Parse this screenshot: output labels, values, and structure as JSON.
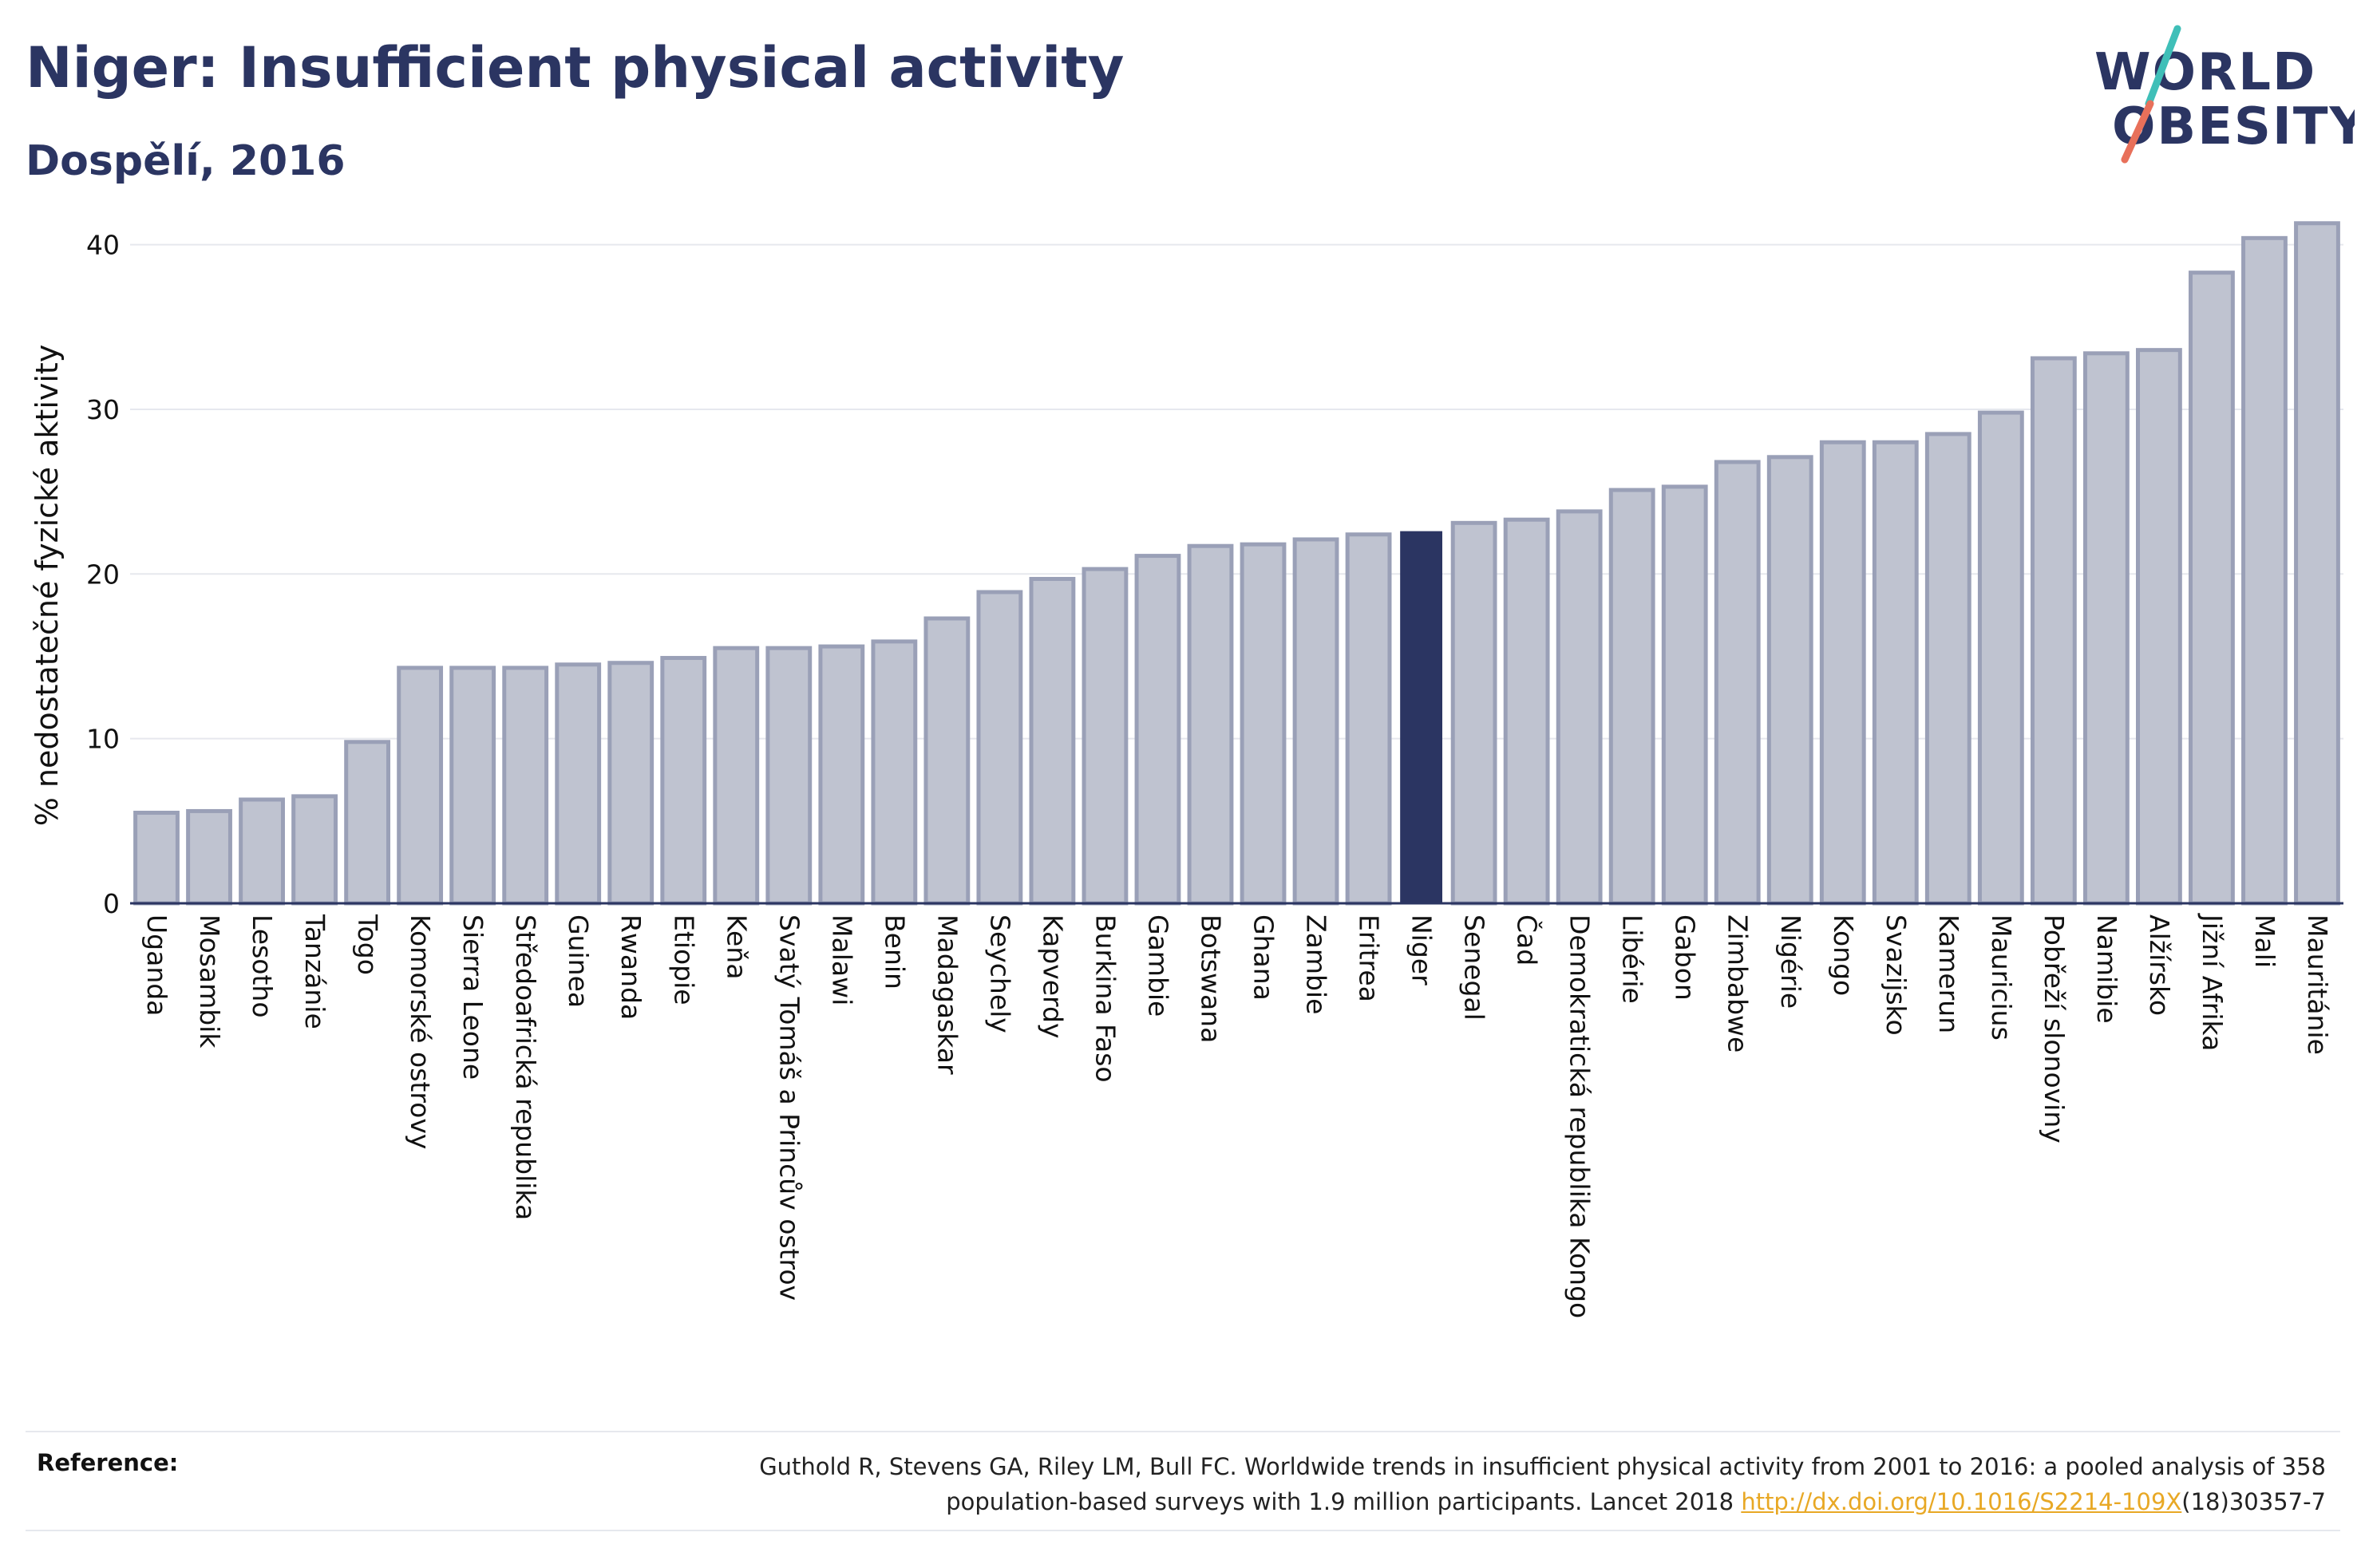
{
  "title": "Niger: Insufficient physical activity",
  "subtitle": "Dospělí, 2016",
  "logo": {
    "line1": "WORLD",
    "line2": "OBESITY",
    "accent_colors": [
      "#3fbfb8",
      "#e8705a"
    ]
  },
  "colors": {
    "bar_fill": "#bfc3d0",
    "bar_stroke": "#9aa0b7",
    "highlight": "#2b3562",
    "grid": "#e6e8ee",
    "axis": "#2b3562"
  },
  "chart_data": {
    "type": "bar",
    "title": "Niger: Insufficient physical activity",
    "subtitle": "Dospělí, 2016",
    "xlabel": "",
    "ylabel": "% nedostatečné fyzické aktivity",
    "ylim": [
      0,
      42.5
    ],
    "yticks": [
      0,
      10,
      20,
      30,
      40
    ],
    "grid": true,
    "highlight": "Niger",
    "categories": [
      "Uganda",
      "Mosambik",
      "Lesotho",
      "Tanzánie",
      "Togo",
      "Komorské ostrovy",
      "Sierra Leone",
      "Středoafrická republika",
      "Guinea",
      "Rwanda",
      "Etiopie",
      "Keňa",
      "Svatý Tomáš a Princův ostrov",
      "Malawi",
      "Benin",
      "Madagaskar",
      "Seychely",
      "Kapverdy",
      "Burkina Faso",
      "Gambie",
      "Botswana",
      "Ghana",
      "Zambie",
      "Eritrea",
      "Niger",
      "Senegal",
      "Čad",
      "Demokratická republika Kongo",
      "Libérie",
      "Gabon",
      "Zimbabwe",
      "Nigérie",
      "Kongo",
      "Svazijsko",
      "Kamerun",
      "Mauricius",
      "Pobřeží slonoviny",
      "Namibie",
      "Alžírsko",
      "Jižní Afrika",
      "Mali",
      "Mauritánie"
    ],
    "values": [
      5.5,
      5.6,
      6.3,
      6.5,
      9.8,
      14.3,
      14.3,
      14.3,
      14.5,
      14.6,
      14.9,
      15.5,
      15.5,
      15.6,
      15.9,
      17.3,
      18.9,
      19.7,
      20.3,
      21.1,
      21.7,
      21.8,
      22.1,
      22.4,
      22.6,
      23.1,
      23.3,
      23.8,
      25.1,
      25.3,
      26.8,
      27.1,
      28.0,
      28.0,
      28.5,
      29.8,
      33.1,
      33.4,
      33.6,
      38.3,
      40.4,
      41.3
    ]
  },
  "reference": {
    "label": "Reference:",
    "text_line1": "Guthold R, Stevens GA, Riley LM, Bull FC. Worldwide trends in insufficient physical activity from 2001 to 2016: a pooled analysis of 358",
    "text_line2_pre": "population-based surveys with 1.9 million participants. Lancet 2018 ",
    "link_text": "http://dx.doi.org/10.1016/S2214-109X",
    "text_line2_post": "(18)30357-7"
  }
}
